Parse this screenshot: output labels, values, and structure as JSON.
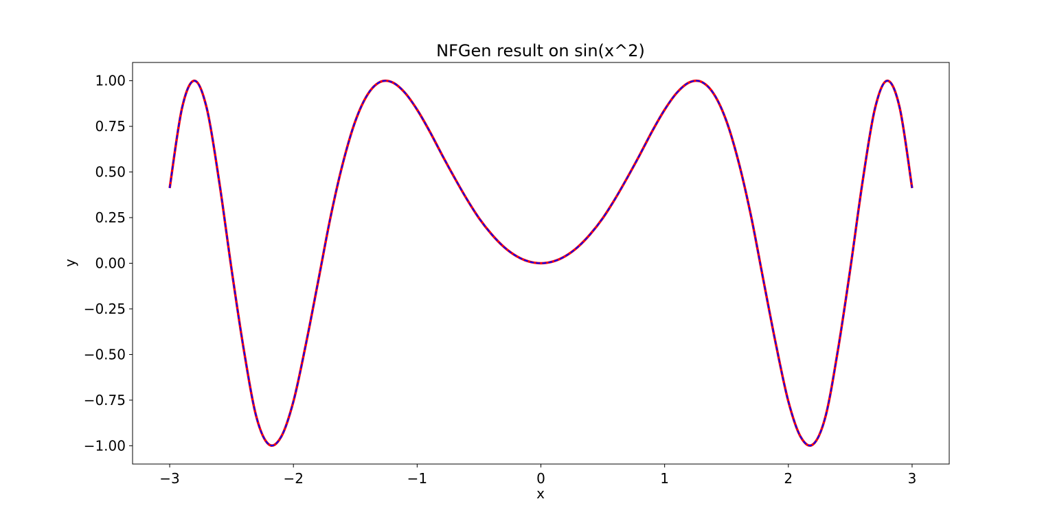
{
  "chart_data": {
    "type": "line",
    "title": "NFGen result on sin(x^2)",
    "xlabel": "x",
    "ylabel": "y",
    "xlim": [
      -3.3,
      3.3
    ],
    "ylim": [
      -1.1,
      1.1
    ],
    "x_ticks": [
      -3,
      -2,
      -1,
      0,
      1,
      2,
      3
    ],
    "x_tick_labels": [
      "−3",
      "−2",
      "−1",
      "0",
      "1",
      "2",
      "3"
    ],
    "y_ticks": [
      -1.0,
      -0.75,
      -0.5,
      -0.25,
      0.0,
      0.25,
      0.5,
      0.75,
      1.0
    ],
    "y_tick_labels": [
      "−1.00",
      "−0.75",
      "−0.50",
      "−0.25",
      "0.00",
      "0.25",
      "0.50",
      "0.75",
      "1.00"
    ],
    "grid": false,
    "legend": false,
    "series": [
      {
        "color": "#ff0000",
        "style": "solid",
        "x": [
          -3.0,
          -2.9,
          -2.8,
          -2.7,
          -2.6,
          -2.5,
          -2.4,
          -2.3,
          -2.2,
          -2.1,
          -2.0,
          -1.9,
          -1.8,
          -1.7,
          -1.6,
          -1.5,
          -1.4,
          -1.3,
          -1.2,
          -1.1,
          -1.0,
          -0.9,
          -0.8,
          -0.7,
          -0.6,
          -0.5,
          -0.4,
          -0.3,
          -0.2,
          -0.1,
          0.0,
          0.1,
          0.2,
          0.3,
          0.4,
          0.5,
          0.6,
          0.7,
          0.8,
          0.9,
          1.0,
          1.1,
          1.2,
          1.3,
          1.4,
          1.5,
          1.6,
          1.7,
          1.8,
          1.9,
          2.0,
          2.1,
          2.2,
          2.3,
          2.4,
          2.5,
          2.6,
          2.7,
          2.8,
          2.9,
          3.0
        ],
        "y": [
          0.412,
          0.851,
          1.0,
          0.848,
          0.448,
          -0.033,
          -0.478,
          -0.84,
          -0.992,
          -0.952,
          -0.757,
          -0.446,
          -0.099,
          0.253,
          0.549,
          0.778,
          0.925,
          0.993,
          0.991,
          0.935,
          0.841,
          0.724,
          0.595,
          0.471,
          0.353,
          0.247,
          0.16,
          0.09,
          0.04,
          0.01,
          0.0,
          0.01,
          0.04,
          0.09,
          0.16,
          0.247,
          0.353,
          0.471,
          0.595,
          0.724,
          0.841,
          0.935,
          0.991,
          0.993,
          0.925,
          0.778,
          0.549,
          0.253,
          -0.099,
          -0.446,
          -0.757,
          -0.952,
          -0.992,
          -0.84,
          -0.478,
          -0.033,
          0.448,
          0.848,
          1.0,
          0.851,
          0.412
        ]
      },
      {
        "color": "#0000ff",
        "style": "dashed",
        "x": [
          -3.0,
          -2.9,
          -2.8,
          -2.7,
          -2.6,
          -2.5,
          -2.4,
          -2.3,
          -2.2,
          -2.1,
          -2.0,
          -1.9,
          -1.8,
          -1.7,
          -1.6,
          -1.5,
          -1.4,
          -1.3,
          -1.2,
          -1.1,
          -1.0,
          -0.9,
          -0.8,
          -0.7,
          -0.6,
          -0.5,
          -0.4,
          -0.3,
          -0.2,
          -0.1,
          0.0,
          0.1,
          0.2,
          0.3,
          0.4,
          0.5,
          0.6,
          0.7,
          0.8,
          0.9,
          1.0,
          1.1,
          1.2,
          1.3,
          1.4,
          1.5,
          1.6,
          1.7,
          1.8,
          1.9,
          2.0,
          2.1,
          2.2,
          2.3,
          2.4,
          2.5,
          2.6,
          2.7,
          2.8,
          2.9,
          3.0
        ],
        "y": [
          0.412,
          0.851,
          1.0,
          0.848,
          0.448,
          -0.033,
          -0.478,
          -0.84,
          -0.992,
          -0.952,
          -0.757,
          -0.446,
          -0.099,
          0.253,
          0.549,
          0.778,
          0.925,
          0.993,
          0.991,
          0.935,
          0.841,
          0.724,
          0.595,
          0.471,
          0.353,
          0.247,
          0.16,
          0.09,
          0.04,
          0.01,
          0.0,
          0.01,
          0.04,
          0.09,
          0.16,
          0.247,
          0.353,
          0.471,
          0.595,
          0.724,
          0.841,
          0.935,
          0.991,
          0.993,
          0.925,
          0.778,
          0.549,
          0.253,
          -0.099,
          -0.446,
          -0.757,
          -0.952,
          -0.992,
          -0.84,
          -0.478,
          -0.033,
          0.448,
          0.848,
          1.0,
          0.851,
          0.412
        ]
      }
    ]
  }
}
